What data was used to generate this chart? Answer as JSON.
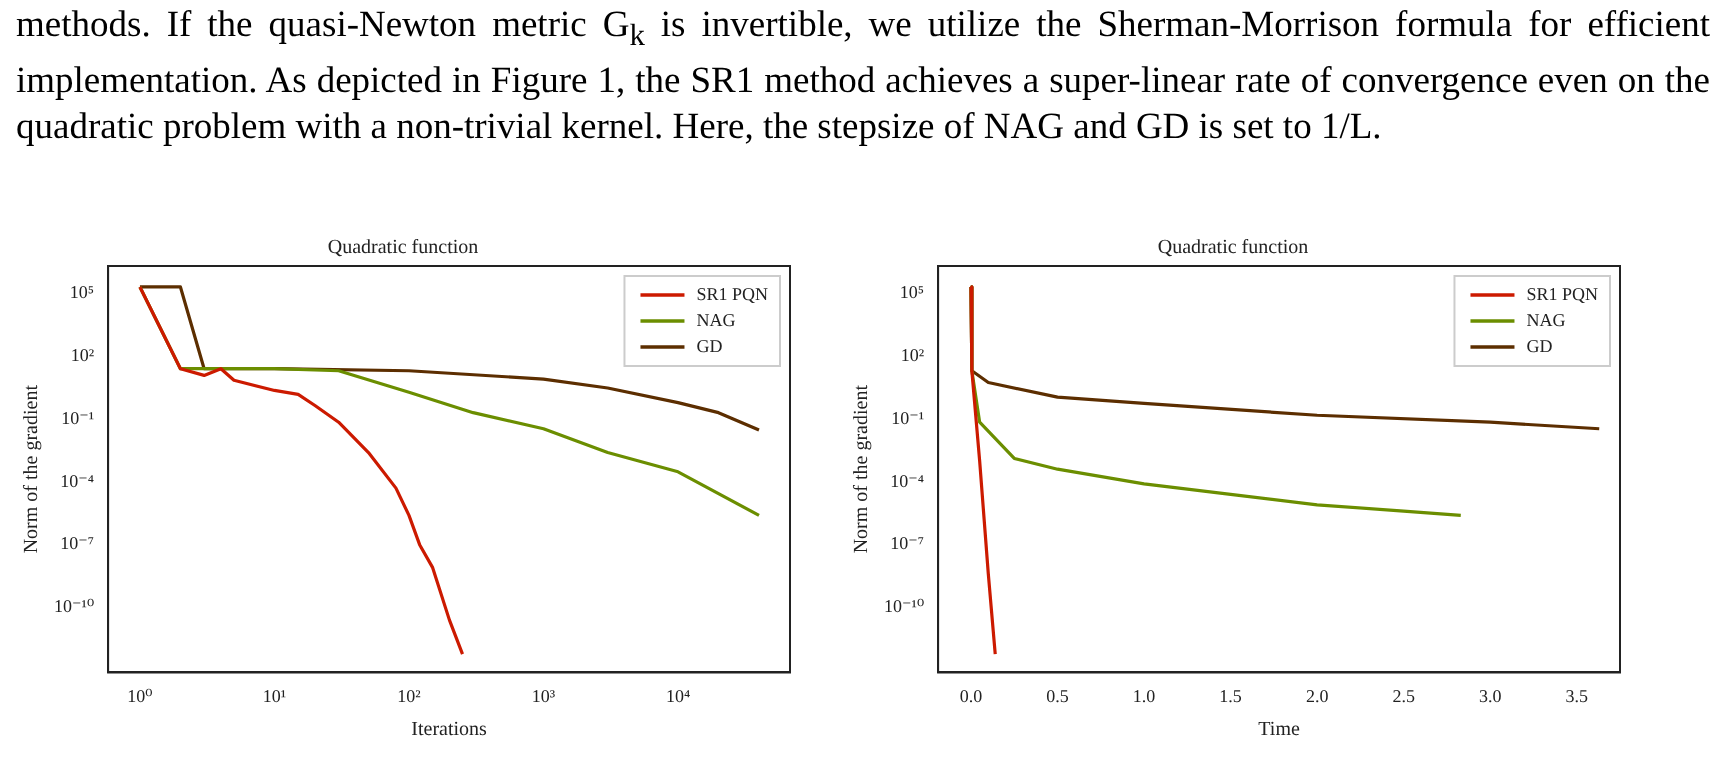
{
  "chart_data": [
    {
      "type": "line",
      "title": "Quadratic function",
      "xlabel": "Iterations",
      "ylabel": "Norm of the gradient",
      "log": "xy",
      "legend": "top right",
      "grid": false,
      "annotations": [
        "methods. If the quasi-Newton metric G$_{k}$ is invertible, we utilize the Sherman-Morrison formula for efficient implementation. As depicted in Figure 1, the SR1 method achieves a super-linear rate of convergence even on the quadratic problem with a non-trivial kernel. Here, the stepsize of NAG and GD is set to 1/L."
      ],
      "xlim": [
        0.58,
        68000
      ],
      "xticks": [
        {
          "value": 1,
          "label": "10⁰"
        },
        {
          "value": 10,
          "label": "10¹"
        },
        {
          "value": 100,
          "label": "10²"
        },
        {
          "value": 1000,
          "label": "10³"
        },
        {
          "value": 10000,
          "label": "10⁴"
        }
      ],
      "ylim": [
        8e-14,
        2000000.0
      ],
      "yticks": [
        {
          "value": 1e-10,
          "label": "10⁻¹⁰"
        },
        {
          "value": 1e-07,
          "label": "10⁻⁷"
        },
        {
          "value": 0.0001,
          "label": "10⁻⁴"
        },
        {
          "value": 0.1,
          "label": "10⁻¹"
        },
        {
          "value": 100,
          "label": "10²"
        },
        {
          "value": 100000,
          "label": "10⁵"
        }
      ],
      "series": [
        {
          "name": "SR1 PQN",
          "color": "#cc1a00",
          "x": [
            1,
            2,
            3,
            4,
            5,
            10,
            15,
            20,
            30,
            50,
            80,
            100,
            120,
            150,
            200,
            250
          ],
          "values": [
            200000,
            25,
            12,
            25,
            7,
            2.3,
            1.5,
            0.44,
            0.07,
            0.0025,
            5e-05,
            2.5e-06,
            1e-07,
            8e-09,
            2.5e-11,
            6e-13
          ]
        },
        {
          "name": "NAG",
          "color": "#6b8e00",
          "x": [
            1,
            2,
            10,
            30,
            100,
            300,
            1000,
            3000,
            10000,
            40000
          ],
          "values": [
            200000,
            25,
            25,
            20,
            1.9,
            0.2,
            0.034,
            0.0025,
            0.0003,
            2.5e-06
          ]
        },
        {
          "name": "GD",
          "color": "#5c2e00",
          "x": [
            1,
            2,
            3,
            10,
            100,
            1000,
            3000,
            10000,
            20000,
            40000
          ],
          "values": [
            200000,
            200000,
            25,
            25,
            20,
            8,
            3,
            0.6,
            0.2,
            0.03
          ]
        }
      ]
    },
    {
      "type": "line",
      "title": "Quadratic function",
      "xlabel": "Time",
      "ylabel": "Norm of the gradient",
      "log": "y",
      "legend": "top right",
      "grid": false,
      "xlim": [
        -0.19,
        3.75
      ],
      "xticks": [
        {
          "value": 0,
          "label": "0.0"
        },
        0.5,
        {
          "value": 1,
          "label": "1.0"
        },
        1.5,
        {
          "value": 2,
          "label": "2.0"
        },
        2.5,
        {
          "value": 3,
          "label": "3.0"
        },
        3.5
      ],
      "ylim": [
        8e-14,
        2000000.0
      ],
      "yticks": [
        {
          "value": 1e-10,
          "label": "10⁻¹⁰"
        },
        {
          "value": 1e-07,
          "label": "10⁻⁷"
        },
        {
          "value": 0.0001,
          "label": "10⁻⁴"
        },
        {
          "value": 0.1,
          "label": "10⁻¹"
        },
        {
          "value": 100,
          "label": "10²"
        },
        {
          "value": 100000,
          "label": "10⁵"
        }
      ],
      "series": [
        {
          "name": "SR1 PQN",
          "color": "#cc1a00",
          "x": [
            0,
            0.005,
            0.05,
            0.1,
            0.14
          ],
          "values": [
            200000,
            20,
            0.001,
            4e-09,
            6e-13
          ]
        },
        {
          "name": "NAG",
          "color": "#6b8e00",
          "x": [
            0,
            0.005,
            0.05,
            0.25,
            0.5,
            1,
            1.5,
            2,
            2.5,
            2.83
          ],
          "values": [
            200000,
            20,
            0.07,
            0.0013,
            0.0004,
            8e-05,
            2.5e-05,
            8e-06,
            4e-06,
            2.5e-06
          ]
        },
        {
          "name": "GD",
          "color": "#5c2e00",
          "x": [
            0,
            0.005,
            0.1,
            0.5,
            1,
            2,
            3,
            3.63
          ],
          "values": [
            200000,
            20,
            5.5,
            1.1,
            0.55,
            0.15,
            0.07,
            0.034
          ]
        }
      ]
    }
  ]
}
